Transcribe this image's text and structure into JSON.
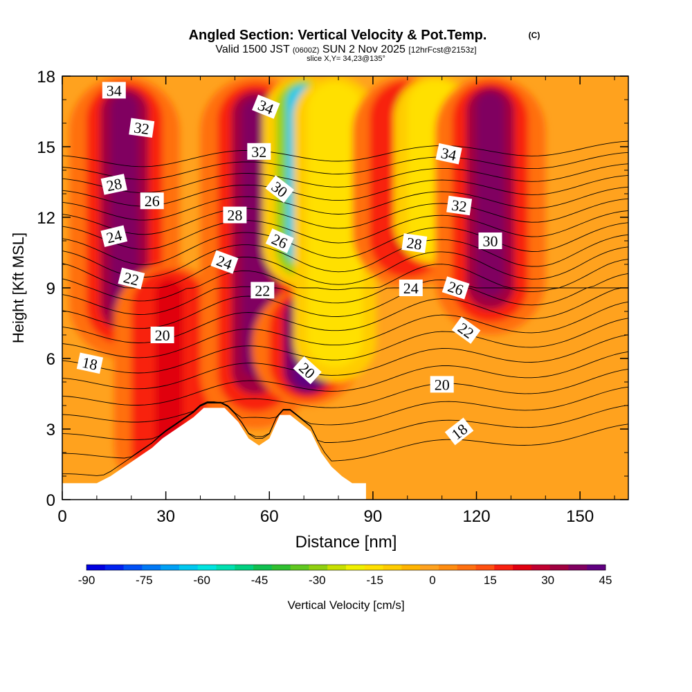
{
  "title": {
    "main": "Angled Section: Vertical Velocity & Pot.Temp.",
    "copyright": "(C)",
    "valid_prefix": "Valid 1500 JST",
    "valid_zulu": "(0600Z)",
    "valid_date": "SUN 2 Nov 2025",
    "forecast": "[12hrFcst@2153z]",
    "slice": "slice X,Y= 34,23@135°"
  },
  "chart_data": {
    "type": "heatmap",
    "title": "Angled Section: Vertical Velocity & Pot.Temp.",
    "xlabel": "Distance [nm]",
    "ylabel": "Height [Kft MSL]",
    "xlim": [
      0,
      164
    ],
    "ylim": [
      0,
      18
    ],
    "x_ticks": [
      "0",
      "30",
      "60",
      "90",
      "120",
      "150"
    ],
    "y_ticks": [
      "0",
      "3",
      "6",
      "9",
      "12",
      "15",
      "18"
    ],
    "colorbar": {
      "label": "Vertical Velocity [cm/s]",
      "range": [
        -90,
        45
      ],
      "step": 5,
      "tick_labels": [
        "-90",
        "-75",
        "-60",
        "-45",
        "-30",
        "-15",
        "0",
        "15",
        "30",
        "45"
      ]
    },
    "vertical_velocity_features": [
      {
        "x": 18,
        "ymin": 6,
        "ymax": 18,
        "peak": 40
      },
      {
        "x": 31,
        "ymin": 0,
        "ymax": 10,
        "peak": 25
      },
      {
        "x": 56,
        "ymin": 3,
        "ymax": 18,
        "peak": 40
      },
      {
        "x": 71,
        "ymin": 4,
        "ymax": 9,
        "peak": 45
      },
      {
        "x": 70,
        "ymin": 9,
        "ymax": 18,
        "peak": -65
      },
      {
        "x": 79,
        "ymin": 5,
        "ymax": 18,
        "peak": -15
      },
      {
        "x": 100,
        "ymin": 9,
        "ymax": 18,
        "peak": 25
      },
      {
        "x": 108,
        "ymin": 10,
        "ymax": 18,
        "peak": -15
      },
      {
        "x": 124,
        "ymin": 7,
        "ymax": 18,
        "peak": 40
      }
    ],
    "terrain_profile": {
      "x": [
        10,
        14,
        17,
        20,
        23,
        26,
        29,
        32,
        35,
        38,
        41,
        43,
        47,
        51,
        54,
        57,
        60,
        63,
        66,
        72,
        75,
        78,
        81,
        84,
        88
      ],
      "height": [
        0.7,
        1.0,
        1.3,
        1.6,
        1.9,
        2.2,
        2.6,
        2.9,
        3.2,
        3.5,
        3.9,
        3.9,
        3.9,
        3.3,
        2.6,
        2.3,
        2.6,
        3.6,
        3.6,
        2.9,
        2.0,
        1.4,
        1.0,
        0.7,
        0.7
      ]
    },
    "theta_isentropes": {
      "levels_labeled": [
        "18",
        "20",
        "22",
        "24",
        "26",
        "28",
        "30",
        "32",
        "34"
      ],
      "labels": [
        {
          "text": "34",
          "x": 15,
          "y": 17.4,
          "angle": 0
        },
        {
          "text": "32",
          "x": 23,
          "y": 15.8,
          "angle": 8
        },
        {
          "text": "28",
          "x": 15,
          "y": 13.4,
          "angle": -12
        },
        {
          "text": "26",
          "x": 26,
          "y": 12.7,
          "angle": 0
        },
        {
          "text": "24",
          "x": 15,
          "y": 11.2,
          "angle": -14
        },
        {
          "text": "22",
          "x": 20,
          "y": 9.4,
          "angle": 14
        },
        {
          "text": "20",
          "x": 29,
          "y": 7.0,
          "angle": 0
        },
        {
          "text": "18",
          "x": 8,
          "y": 5.8,
          "angle": 12
        },
        {
          "text": "34",
          "x": 59,
          "y": 16.7,
          "angle": 22
        },
        {
          "text": "32",
          "x": 57,
          "y": 14.8,
          "angle": 0
        },
        {
          "text": "30",
          "x": 63,
          "y": 13.2,
          "angle": 38
        },
        {
          "text": "28",
          "x": 50,
          "y": 12.1,
          "angle": 0
        },
        {
          "text": "26",
          "x": 63,
          "y": 11.0,
          "angle": 24
        },
        {
          "text": "24",
          "x": 47,
          "y": 10.1,
          "angle": 20
        },
        {
          "text": "22",
          "x": 58,
          "y": 8.9,
          "angle": 0
        },
        {
          "text": "20",
          "x": 71,
          "y": 5.5,
          "angle": 42
        },
        {
          "text": "34",
          "x": 112,
          "y": 14.7,
          "angle": 12
        },
        {
          "text": "32",
          "x": 115,
          "y": 12.5,
          "angle": 8
        },
        {
          "text": "28",
          "x": 102,
          "y": 10.9,
          "angle": 8
        },
        {
          "text": "30",
          "x": 124,
          "y": 11.0,
          "angle": 0
        },
        {
          "text": "24",
          "x": 101,
          "y": 9.0,
          "angle": 0
        },
        {
          "text": "26",
          "x": 114,
          "y": 9.0,
          "angle": 18
        },
        {
          "text": "22",
          "x": 117,
          "y": 7.2,
          "angle": 36
        },
        {
          "text": "20",
          "x": 110,
          "y": 4.9,
          "angle": 0
        },
        {
          "text": "18",
          "x": 115,
          "y": 2.9,
          "angle": -38
        }
      ]
    }
  }
}
